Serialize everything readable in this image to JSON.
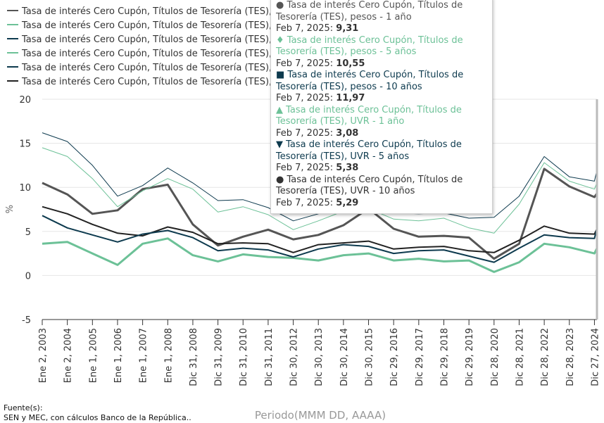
{
  "chart_data": {
    "type": "line",
    "ylabel": "%",
    "xlabel": "Periodo(MMM DD, AAAA)",
    "ylim": [
      -5,
      20
    ],
    "yticks": [
      -5,
      0,
      5,
      10,
      15,
      20
    ],
    "xticks": [
      "Ene 2, 2003",
      "Ene 2, 2004",
      "Ene 1, 2005",
      "Ene 1, 2006",
      "Ene 1, 2007",
      "Ene 1, 2008",
      "Dic 31, 2008",
      "Dic 31, 2009",
      "Dic 31, 2010",
      "Dic 31, 2011",
      "Dic 30, 2012",
      "Dic 30, 2013",
      "Dic 30, 2014",
      "Dic 30, 2015",
      "Dic 29, 2016",
      "Dic 29, 2017",
      "Dic 29, 2018",
      "Dic 29, 2019",
      "Dic 28, 2020",
      "Dic 28, 2021",
      "Dic 28, 2022",
      "Dic 28, 2023",
      "Dic 27, 2024"
    ],
    "x_years": [
      2003,
      2004,
      2005,
      2006,
      2007,
      2008,
      2009,
      2010,
      2011,
      2012,
      2013,
      2014,
      2015,
      2016,
      2017,
      2018,
      2019,
      2020,
      2021,
      2022,
      2023,
      2024,
      2025,
      2025.1
    ],
    "grid": true,
    "legend_position": "top-left",
    "series": [
      {
        "name": "Tasa de interés Cero Cupón, Títulos de Tesorería (TES), pesos - 1 año",
        "color": "#555555",
        "width": 3,
        "values": [
          10.5,
          9.2,
          7.0,
          7.4,
          9.8,
          10.3,
          5.8,
          3.4,
          4.4,
          5.2,
          4.1,
          4.6,
          5.7,
          7.6,
          5.3,
          4.4,
          4.5,
          4.3,
          1.9,
          3.6,
          12.1,
          10.1,
          8.9,
          9.31
        ]
      },
      {
        "name": "Tasa de interés Cero Cupón, Títulos de Tesorería (TES), pesos - 5 años",
        "color": "#6cc197",
        "width": 1,
        "values": [
          14.5,
          13.5,
          11.0,
          7.8,
          9.6,
          11.0,
          9.8,
          7.2,
          7.8,
          6.9,
          5.2,
          6.2,
          7.3,
          7.6,
          6.4,
          6.2,
          6.5,
          5.4,
          4.8,
          8.1,
          12.8,
          10.7,
          9.8,
          10.55
        ]
      },
      {
        "name": "Tasa de interés Cero Cupón, Títulos de Tesorería (TES), pesos - 10 años",
        "color": "#0d3a4e",
        "width": 1,
        "values": [
          16.2,
          15.2,
          12.5,
          9.0,
          10.2,
          12.2,
          10.5,
          8.5,
          8.6,
          7.7,
          6.2,
          7.0,
          8.2,
          8.6,
          7.1,
          7.0,
          7.1,
          6.5,
          6.6,
          9.0,
          13.5,
          11.2,
          10.7,
          11.97
        ]
      },
      {
        "name": "Tasa de interés Cero Cupón, Títulos de Tesorería (TES), UVR - 1 año",
        "color": "#6cc197",
        "width": 3,
        "values": [
          3.6,
          3.8,
          2.5,
          1.2,
          3.6,
          4.2,
          2.3,
          1.6,
          2.4,
          2.1,
          2.0,
          1.7,
          2.3,
          2.5,
          1.7,
          1.9,
          1.6,
          1.7,
          0.4,
          1.5,
          3.6,
          3.2,
          2.5,
          3.08
        ]
      },
      {
        "name": "Tasa de interés Cero Cupón, Títulos de Tesorería (TES), UVR - 5 años",
        "color": "#0d3a4e",
        "width": 2,
        "values": [
          6.8,
          5.4,
          4.6,
          3.8,
          4.7,
          5.1,
          4.3,
          2.8,
          3.1,
          2.9,
          2.1,
          3.0,
          3.5,
          3.3,
          2.5,
          2.8,
          2.9,
          2.2,
          1.5,
          3.1,
          4.6,
          4.3,
          4.2,
          5.38
        ]
      },
      {
        "name": "Tasa de interés Cero Cupón, Títulos de Tesorería (TES), UVR - 10 años",
        "color": "#222222",
        "width": 2,
        "values": [
          7.8,
          7.0,
          5.8,
          4.8,
          4.5,
          5.5,
          4.9,
          3.6,
          3.7,
          3.6,
          2.6,
          3.5,
          3.7,
          3.9,
          3.0,
          3.2,
          3.3,
          2.8,
          2.6,
          4.0,
          5.6,
          4.8,
          4.7,
          5.29
        ]
      }
    ]
  },
  "source": {
    "label": "Fuente(s):",
    "text": "SEN y MEC, con cálculos Banco de la República.."
  },
  "tooltip": {
    "items": [
      {
        "symbol": "●",
        "color": "#555555",
        "text": "Tasa de interés Cero Cupón, Títulos de Tesorería (TES), pesos - 1 año",
        "date": "Feb 7, 2025:",
        "value": "9,31"
      },
      {
        "symbol": "♦",
        "color": "#6cc197",
        "text": "Tasa de interés Cero Cupón, Títulos de Tesorería (TES), pesos - 5 años",
        "date": "Feb 7, 2025:",
        "value": "10,55"
      },
      {
        "symbol": "■",
        "color": "#0d3a4e",
        "text": "Tasa de interés Cero Cupón, Títulos de Tesorería (TES), pesos - 10 años",
        "date": "Feb 7, 2025:",
        "value": "11,97"
      },
      {
        "symbol": "▲",
        "color": "#6cc197",
        "text": "Tasa de interés Cero Cupón, Títulos de Tesorería (TES), UVR - 1 año",
        "date": "Feb 7, 2025:",
        "value": "3,08"
      },
      {
        "symbol": "▼",
        "color": "#0d3a4e",
        "text": "Tasa de interés Cero Cupón, Títulos de Tesorería (TES), UVR - 5 años",
        "date": "Feb 7, 2025:",
        "value": "5,38"
      },
      {
        "symbol": "●",
        "color": "#333333",
        "text": "Tasa de interés Cero Cupón, Títulos de Tesorería (TES), UVR - 10 años",
        "date": "Feb 7, 2025:",
        "value": "5,29"
      }
    ]
  }
}
